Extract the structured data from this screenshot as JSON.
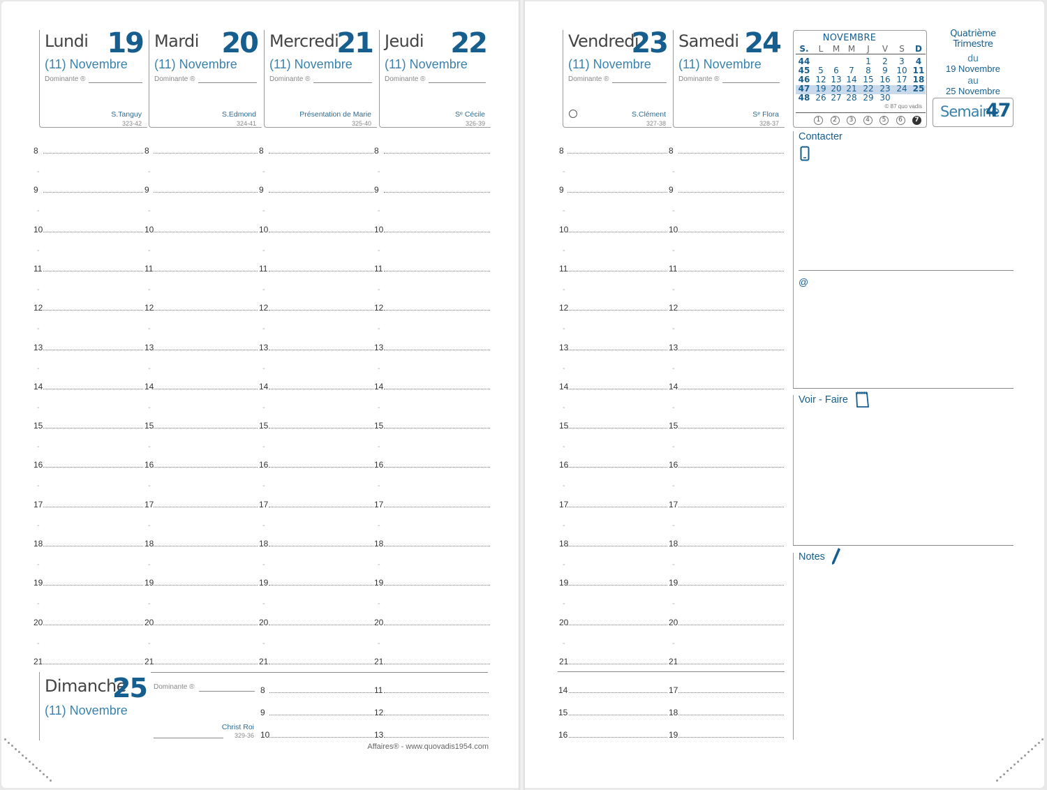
{
  "left_days": [
    {
      "name": "Lundi",
      "num": "19",
      "month": "(11) Novembre",
      "dominante": "Dominante ®",
      "saint": "S.Tanguy",
      "count": "323-42"
    },
    {
      "name": "Mardi",
      "num": "20",
      "month": "(11) Novembre",
      "dominante": "Dominante ®",
      "saint": "S.Edmond",
      "count": "324-41"
    },
    {
      "name": "Mercredi",
      "num": "21",
      "month": "(11) Novembre",
      "dominante": "Dominante ®",
      "saint": "Présentation de Marie",
      "count": "325-40"
    },
    {
      "name": "Jeudi",
      "num": "22",
      "month": "(11) Novembre",
      "dominante": "Dominante ®",
      "saint": "Sᵉ Cécile",
      "count": "326-39"
    }
  ],
  "right_days": [
    {
      "name": "Vendredi",
      "num": "23",
      "month": "(11) Novembre",
      "dominante": "Dominante ®",
      "saint": "S.Clément",
      "count": "327-38"
    },
    {
      "name": "Samedi",
      "num": "24",
      "month": "(11) Novembre",
      "dominante": "Dominante ®",
      "saint": "Sᵉ Flora",
      "count": "328-37"
    }
  ],
  "hours": [
    "8",
    "9",
    "10",
    "11",
    "12",
    "13",
    "14",
    "15",
    "16",
    "17",
    "18",
    "19",
    "20",
    "21"
  ],
  "sunday": {
    "name": "Dimanche",
    "num": "25",
    "month": "(11) Novembre",
    "dominante": "Dominante ®",
    "saint": "Christ Roi",
    "count": "329-36",
    "hours": [
      "8",
      "9",
      "10",
      "11",
      "12",
      "13"
    ]
  },
  "bottom_right_hours": [
    "14",
    "15",
    "16",
    "17",
    "18",
    "19"
  ],
  "footer": "Affaires® - www.quovadis1954.com",
  "mini_calendar": {
    "title": "NOVEMBRE",
    "headers": [
      "S.",
      "L",
      "M",
      "M",
      "J",
      "V",
      "S",
      "D"
    ],
    "rows": [
      [
        "44",
        "",
        "",
        "",
        "1",
        "2",
        "3",
        "4"
      ],
      [
        "45",
        "5",
        "6",
        "7",
        "8",
        "9",
        "10",
        "11"
      ],
      [
        "46",
        "12",
        "13",
        "14",
        "15",
        "16",
        "17",
        "18"
      ],
      [
        "47",
        "19",
        "20",
        "21",
        "22",
        "23",
        "24",
        "25"
      ],
      [
        "48",
        "26",
        "27",
        "28",
        "29",
        "30",
        "",
        ""
      ]
    ],
    "highlight_row": 3,
    "copyright": "© 87 quo vadis",
    "weekday_circles": [
      "1",
      "2",
      "3",
      "4",
      "5",
      "6",
      "7"
    ]
  },
  "trimestre": "Quatrième Trimestre",
  "period": {
    "du": "du",
    "from": "19 Novembre",
    "au": "au",
    "to": "25 Novembre"
  },
  "semaine": {
    "label": "Semaine",
    "num": "47"
  },
  "sections": {
    "contacter": "Contacter",
    "at": "@",
    "voir_faire": "Voir - Faire",
    "notes": "Notes"
  },
  "colors": {
    "accent": "#165e8e",
    "light": "#3a82ad",
    "highlight": "#c7d9ea"
  }
}
